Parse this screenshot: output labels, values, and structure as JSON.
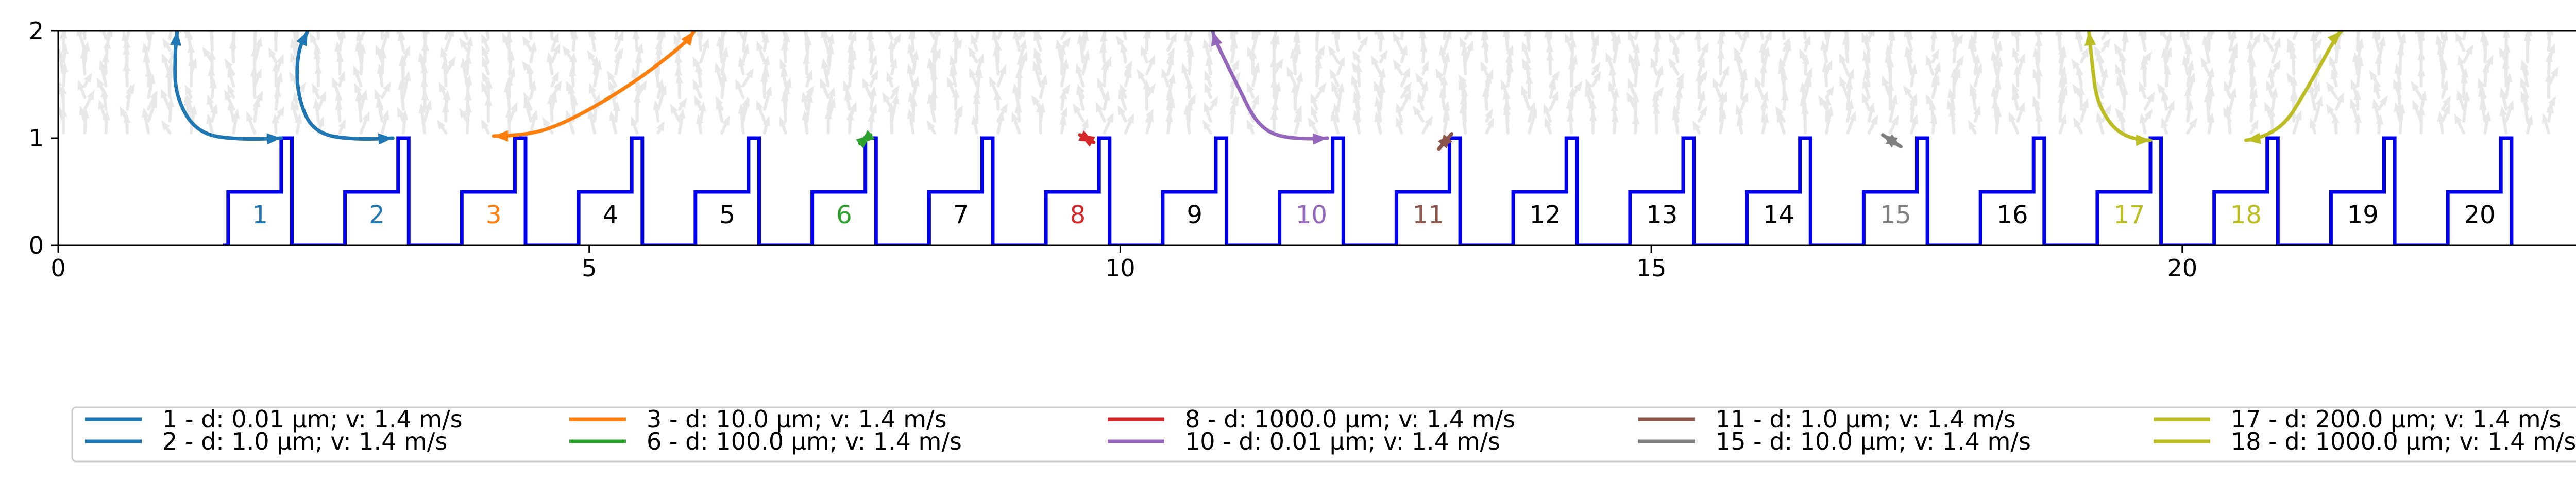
{
  "chart_data": {
    "type": "line",
    "xlim": [
      0,
      24.1
    ],
    "ylim": [
      0,
      2
    ],
    "x_ticks": [
      0,
      5,
      10,
      15,
      20
    ],
    "y_ticks": [
      0,
      1,
      2
    ],
    "grid": false,
    "legend_placement": "below",
    "structure_color": "#0000ee",
    "field_color": "#e6e6e6",
    "cells": [
      {
        "label": "1",
        "color": "#1f77b4"
      },
      {
        "label": "2",
        "color": "#1f77b4"
      },
      {
        "label": "3",
        "color": "#ff7f0e"
      },
      {
        "label": "4",
        "color": "#000000"
      },
      {
        "label": "5",
        "color": "#000000"
      },
      {
        "label": "6",
        "color": "#2ca02c"
      },
      {
        "label": "7",
        "color": "#000000"
      },
      {
        "label": "8",
        "color": "#d62728"
      },
      {
        "label": "9",
        "color": "#000000"
      },
      {
        "label": "10",
        "color": "#9467bd"
      },
      {
        "label": "11",
        "color": "#8c564b"
      },
      {
        "label": "12",
        "color": "#000000"
      },
      {
        "label": "13",
        "color": "#000000"
      },
      {
        "label": "14",
        "color": "#000000"
      },
      {
        "label": "15",
        "color": "#7f7f7f"
      },
      {
        "label": "16",
        "color": "#000000"
      },
      {
        "label": "17",
        "color": "#bcbd22"
      },
      {
        "label": "18",
        "color": "#bcbd22"
      },
      {
        "label": "19",
        "color": "#000000"
      },
      {
        "label": "20",
        "color": "#000000"
      }
    ],
    "series": [
      {
        "name": "1 - d: 0.01 µm; v: 1.4 m/s",
        "color": "#1f77b4",
        "points": [
          [
            2.1,
            1.0
          ],
          [
            1.7,
            0.98
          ],
          [
            1.3,
            1.05
          ],
          [
            1.1,
            1.4
          ],
          [
            1.1,
            1.8
          ],
          [
            1.12,
            2.0
          ]
        ]
      },
      {
        "name": "2 - d: 1.0 µm; v: 1.4 m/s",
        "color": "#1f77b4",
        "points": [
          [
            3.15,
            1.0
          ],
          [
            2.8,
            0.98
          ],
          [
            2.4,
            1.05
          ],
          [
            2.25,
            1.4
          ],
          [
            2.25,
            1.8
          ],
          [
            2.35,
            2.0
          ]
        ]
      },
      {
        "name": "3 - d: 10.0 µm; v: 1.4 m/s",
        "color": "#ff7f0e",
        "points": [
          [
            4.1,
            1.02
          ],
          [
            4.4,
            1.02
          ],
          [
            4.8,
            1.15
          ],
          [
            5.4,
            1.5
          ],
          [
            5.9,
            1.88
          ],
          [
            5.99,
            2.0
          ]
        ]
      },
      {
        "name": "6 - d: 100.0 µm; v: 1.4 m/s",
        "color": "#2ca02c",
        "points": [
          [
            7.55,
            0.95
          ],
          [
            7.65,
            1.03
          ]
        ]
      },
      {
        "name": "8 - d: 1000.0 µm; v: 1.4 m/s",
        "color": "#d62728",
        "points": [
          [
            9.75,
            0.96
          ],
          [
            9.62,
            1.03
          ]
        ]
      },
      {
        "name": "10 - d: 0.01 µm; v: 1.4 m/s",
        "color": "#9467bd",
        "points": [
          [
            11.95,
            1.0
          ],
          [
            11.6,
            0.98
          ],
          [
            11.3,
            1.1
          ],
          [
            11.1,
            1.5
          ],
          [
            10.9,
            1.9
          ],
          [
            10.87,
            2.0
          ]
        ]
      },
      {
        "name": "11 - d: 1.0 µm; v: 1.4 m/s",
        "color": "#8c564b",
        "points": [
          [
            13.0,
            0.9
          ],
          [
            13.12,
            1.04
          ]
        ]
      },
      {
        "name": "15 - d: 10.0 µm; v: 1.4 m/s",
        "color": "#7f7f7f",
        "points": [
          [
            17.35,
            0.92
          ],
          [
            17.18,
            1.03
          ]
        ]
      },
      {
        "name": "17 - d: 200.0 µm; v: 1.4 m/s",
        "color": "#bcbd22",
        "points": [
          [
            19.7,
            0.98
          ],
          [
            19.45,
            0.98
          ],
          [
            19.2,
            1.3
          ],
          [
            19.15,
            1.7
          ],
          [
            19.12,
            2.0
          ]
        ]
      },
      {
        "name": "18 - d: 1000.0 µm; v: 1.4 m/s",
        "color": "#bcbd22",
        "points": [
          [
            20.6,
            0.98
          ],
          [
            20.9,
            1.02
          ],
          [
            21.2,
            1.5
          ],
          [
            21.45,
            1.95
          ],
          [
            21.5,
            2.0
          ]
        ]
      }
    ]
  }
}
